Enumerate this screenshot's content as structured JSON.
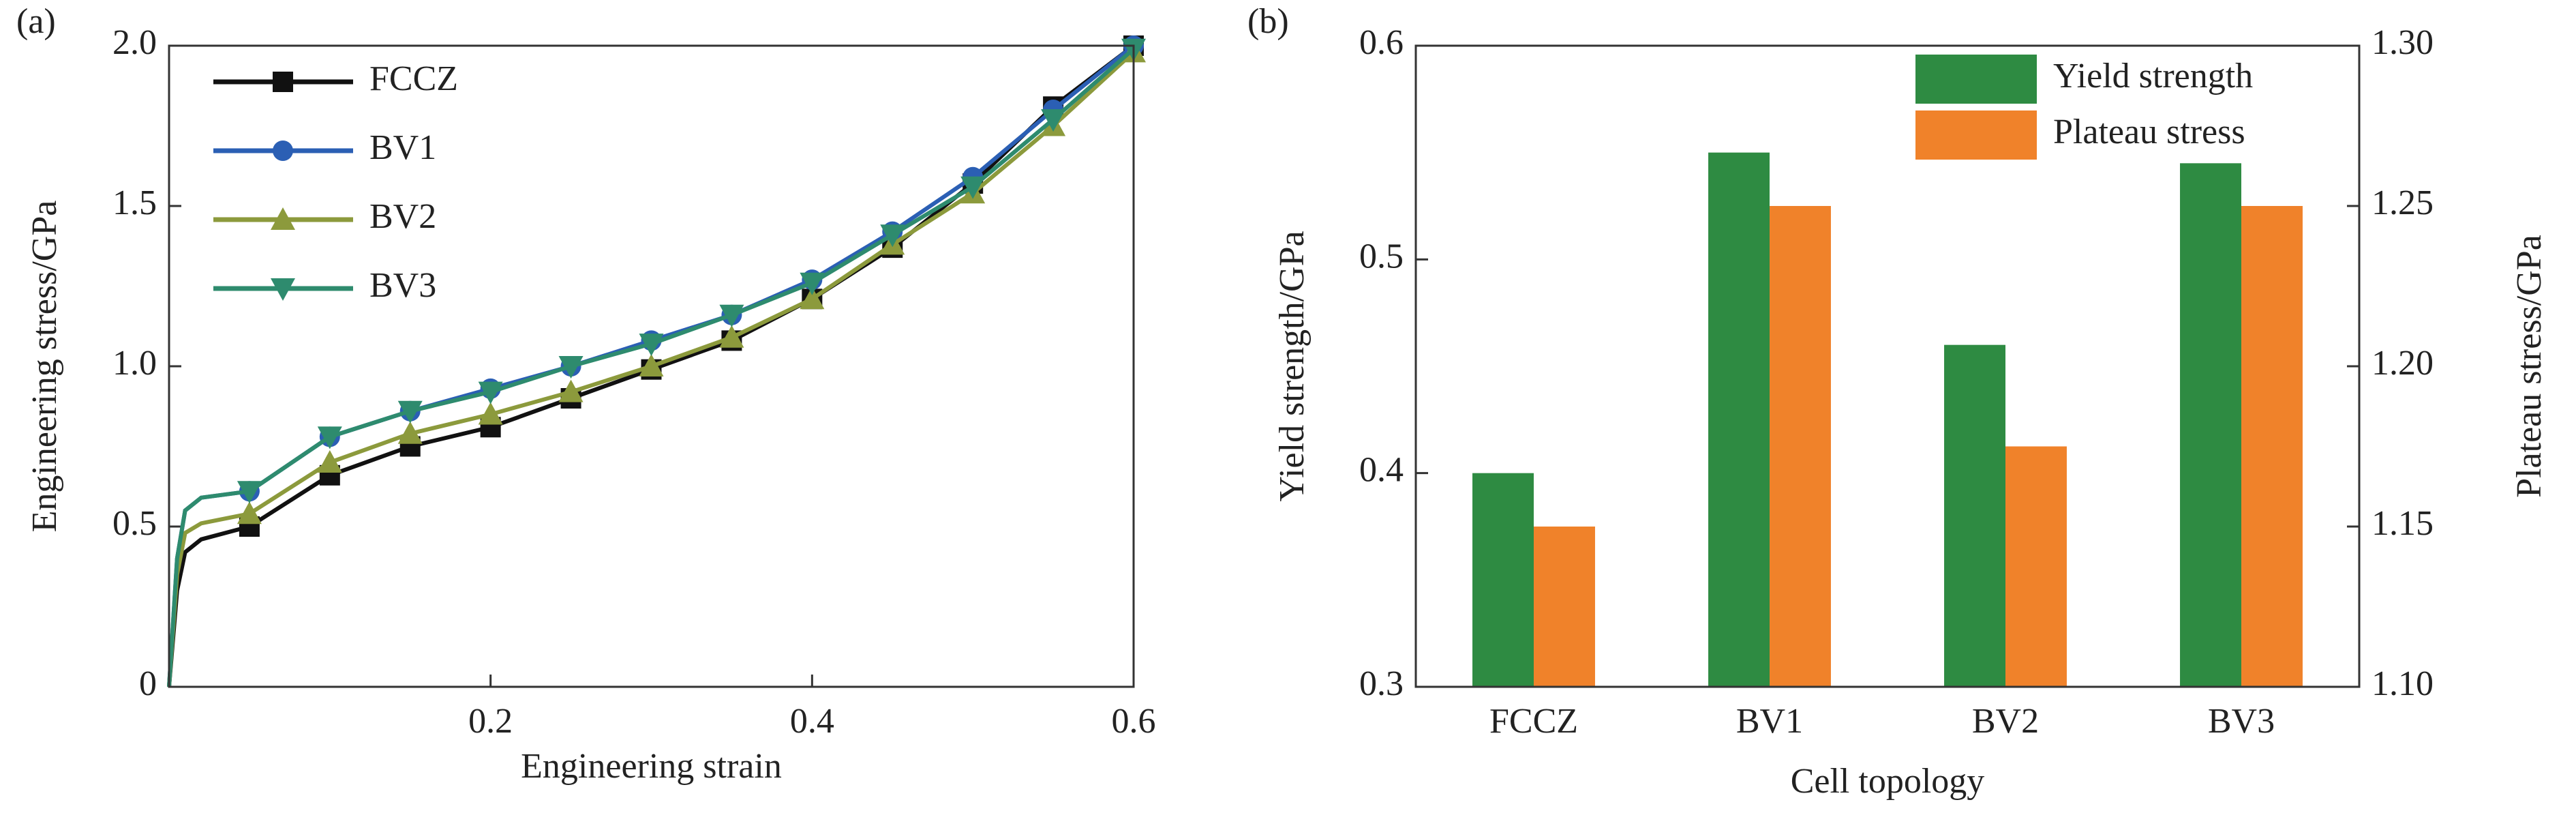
{
  "chart_data": [
    {
      "type": "line",
      "panel_label": "(a)",
      "x_label": "Engineering strain",
      "y_label": "Engineering stress/GPa",
      "x": [
        0,
        0.005,
        0.01,
        0.02,
        0.05,
        0.1,
        0.15,
        0.2,
        0.25,
        0.3,
        0.35,
        0.4,
        0.45,
        0.5,
        0.55,
        0.6
      ],
      "series": [
        {
          "name": "FCCZ",
          "color": "#111111",
          "marker": "square",
          "values": [
            0,
            0.3,
            0.42,
            0.46,
            0.5,
            0.66,
            0.75,
            0.81,
            0.9,
            0.99,
            1.08,
            1.21,
            1.37,
            1.57,
            1.81,
            2.0
          ]
        },
        {
          "name": "BV1",
          "color": "#2b5fb4",
          "marker": "circle",
          "values": [
            0,
            0.4,
            0.55,
            0.59,
            0.61,
            0.78,
            0.86,
            0.93,
            1.0,
            1.08,
            1.16,
            1.27,
            1.42,
            1.59,
            1.8,
            2.0
          ]
        },
        {
          "name": "BV2",
          "color": "#8c9a3c",
          "marker": "triangle-up",
          "values": [
            0,
            0.35,
            0.48,
            0.51,
            0.54,
            0.7,
            0.79,
            0.85,
            0.92,
            1.0,
            1.09,
            1.21,
            1.38,
            1.54,
            1.75,
            1.98
          ]
        },
        {
          "name": "BV3",
          "color": "#2e8b6e",
          "marker": "triangle-down",
          "values": [
            0,
            0.4,
            0.55,
            0.59,
            0.61,
            0.78,
            0.86,
            0.92,
            1.0,
            1.07,
            1.16,
            1.26,
            1.41,
            1.56,
            1.77,
            1.99
          ]
        }
      ],
      "xlim": [
        0,
        0.6
      ],
      "xticks": [
        0.2,
        0.4,
        0.6
      ],
      "ylim": [
        0,
        2.0
      ],
      "yticks": [
        0,
        0.5,
        {
          "value": 1.0,
          "label": "1.0"
        },
        1.5,
        {
          "value": 2.0,
          "label": "2.0"
        }
      ],
      "legend": "upper-left"
    },
    {
      "type": "bar",
      "panel_label": "(b)",
      "x_label": "Cell topology",
      "y_label": "Yield strength/GPa",
      "y2_label": "Plateau stress/GPa",
      "categories": [
        "FCCZ",
        "BV1",
        "BV2",
        "BV3"
      ],
      "series": [
        {
          "name": "Yield strength",
          "color": "#2e8b42",
          "values": [
            0.4,
            0.55,
            0.46,
            0.545
          ]
        },
        {
          "name": "Plateau stress",
          "color": "#f0822a",
          "axis": "y2",
          "values": [
            1.15,
            1.25,
            1.175,
            1.25
          ]
        }
      ],
      "ylim": [
        0.3,
        0.6
      ],
      "yticks": [
        0.3,
        0.4,
        0.5,
        0.6
      ],
      "y2lim": [
        1.1,
        1.3
      ],
      "y2ticks": [
        {
          "value": 1.1,
          "label": "1.10"
        },
        1.15,
        {
          "value": 1.2,
          "label": "1.20"
        },
        1.25,
        {
          "value": 1.3,
          "label": "1.30"
        }
      ],
      "legend": "upper-right"
    }
  ]
}
